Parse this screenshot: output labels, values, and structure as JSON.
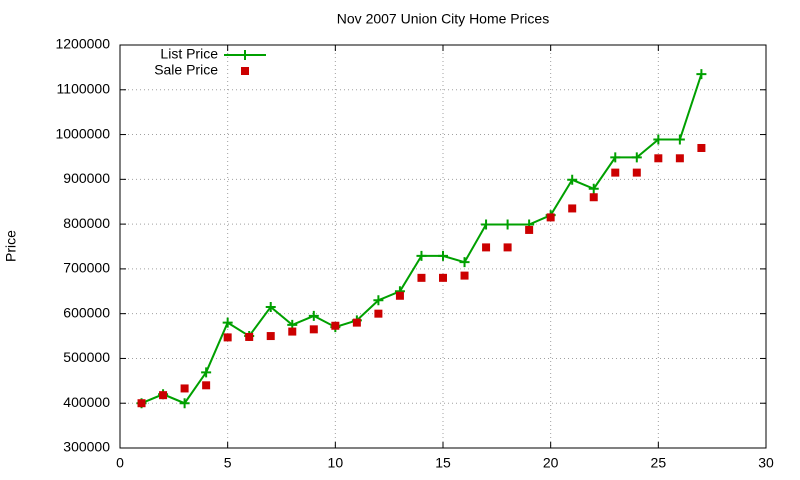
{
  "chart_data": {
    "type": "line",
    "title": "Nov 2007 Union City Home Prices",
    "ylabel": "Price",
    "x": [
      1,
      2,
      3,
      4,
      5,
      6,
      7,
      8,
      9,
      10,
      11,
      12,
      13,
      14,
      15,
      16,
      17,
      18,
      19,
      20,
      21,
      22,
      23,
      24,
      25,
      26,
      27
    ],
    "series": [
      {
        "name": "List Price",
        "color": "#00a000",
        "style": "linespoints",
        "values": [
          400000,
          420000,
          400000,
          469000,
          580000,
          550000,
          615000,
          575000,
          595000,
          570000,
          585000,
          630000,
          650000,
          729000,
          729000,
          715000,
          799000,
          799000,
          799000,
          820000,
          899000,
          879000,
          949000,
          949000,
          989000,
          989000,
          1135000
        ]
      },
      {
        "name": "Sale Price",
        "color": "#cc0000",
        "style": "points",
        "values": [
          400000,
          418000,
          433000,
          440000,
          547000,
          548000,
          550000,
          560000,
          565000,
          573000,
          580000,
          600000,
          640000,
          680000,
          680000,
          685000,
          748000,
          748000,
          787000,
          815000,
          835000,
          860000,
          915000,
          915000,
          947000,
          947000,
          970000
        ]
      }
    ],
    "xlim": [
      0,
      30
    ],
    "xticks": [
      0,
      5,
      10,
      15,
      20,
      25,
      30
    ],
    "ylim": [
      300000,
      1200000
    ],
    "yticks": [
      300000,
      400000,
      500000,
      600000,
      700000,
      800000,
      900000,
      1000000,
      1100000,
      1200000
    ],
    "grid": true,
    "legend": "top-left"
  }
}
